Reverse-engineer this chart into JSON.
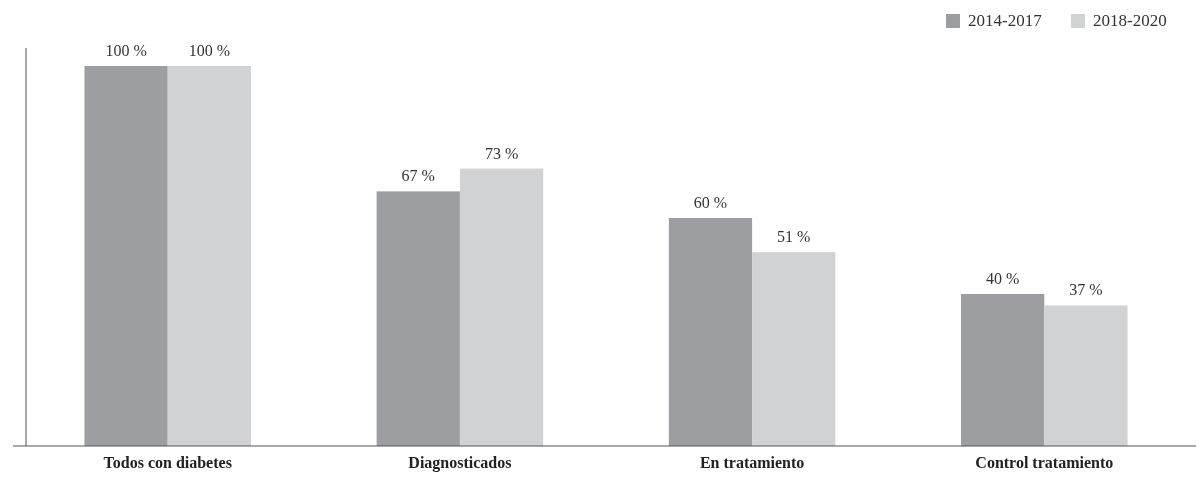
{
  "chart_data": {
    "type": "bar",
    "categories": [
      "Todos con diabetes",
      "Diagnosticados",
      "En tratamiento",
      "Control tratamiento"
    ],
    "series": [
      {
        "name": "2014-2017",
        "color": "#9d9ea2",
        "values": [
          100,
          67,
          60,
          40
        ],
        "value_labels": [
          "100 %",
          "67 %",
          "60 %",
          "40 %"
        ]
      },
      {
        "name": "2018-2020",
        "color": "#d1d2d4",
        "values": [
          100,
          73,
          51,
          37
        ],
        "value_labels": [
          "100 %",
          "73 %",
          "51 %",
          "37 %"
        ]
      }
    ],
    "legend": "top right"
  }
}
